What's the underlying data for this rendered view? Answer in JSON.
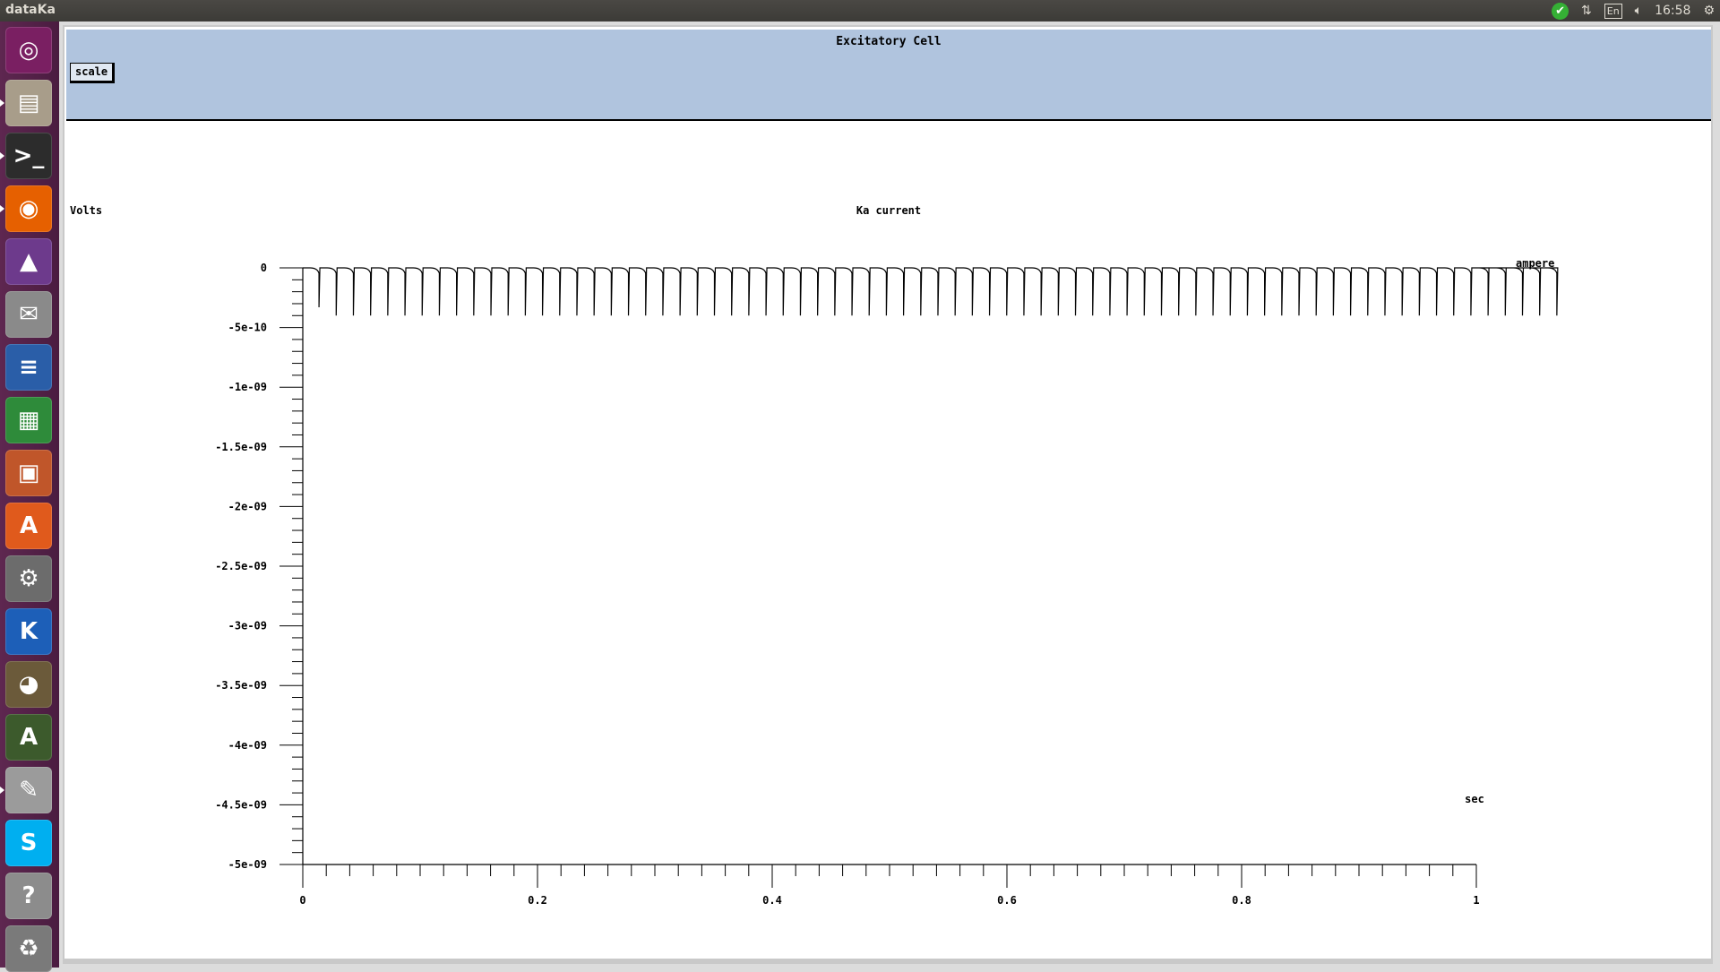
{
  "topbar": {
    "app_title": "dataKa",
    "lang": "En",
    "clock": "16:58"
  },
  "launcher": {
    "items": [
      {
        "name": "ubuntu-dash",
        "glyph": "◎",
        "color": "#7a1f62"
      },
      {
        "name": "files",
        "glyph": "▤",
        "color": "#a89d8a"
      },
      {
        "name": "terminal",
        "glyph": ">_",
        "color": "#2c2c2c"
      },
      {
        "name": "firefox",
        "glyph": "◉",
        "color": "#e66000"
      },
      {
        "name": "matlab",
        "glyph": "▲",
        "color": "#6d3a8c"
      },
      {
        "name": "mail",
        "glyph": "✉",
        "color": "#8a8a8a"
      },
      {
        "name": "writer",
        "glyph": "≡",
        "color": "#2a5ea8"
      },
      {
        "name": "calc",
        "glyph": "▦",
        "color": "#2e8b3a"
      },
      {
        "name": "impress",
        "glyph": "▣",
        "color": "#c0562a"
      },
      {
        "name": "software-center",
        "glyph": "A",
        "color": "#e05a1c"
      },
      {
        "name": "settings",
        "glyph": "⚙",
        "color": "#6c6c6c"
      },
      {
        "name": "kile",
        "glyph": "K",
        "color": "#1d5fb8"
      },
      {
        "name": "gimp",
        "glyph": "◕",
        "color": "#6b5a3a"
      },
      {
        "name": "updater",
        "glyph": "A",
        "color": "#3c5a2c"
      },
      {
        "name": "text-editor",
        "glyph": "✎",
        "color": "#9b9b9b"
      },
      {
        "name": "skype",
        "glyph": "S",
        "color": "#00aff0"
      },
      {
        "name": "help",
        "glyph": "?",
        "color": "#8c8c8c"
      },
      {
        "name": "trash",
        "glyph": "♻",
        "color": "#7a7a7a"
      }
    ]
  },
  "window": {
    "title": "Excitatory Cell",
    "scale_button": "scale"
  },
  "chart_data": {
    "type": "line",
    "title": "Ka current",
    "ylabel": "Volts",
    "ylabel_right": "ampere",
    "xlabel": "sec",
    "xlim": [
      0,
      1
    ],
    "ylim": [
      -5e-09,
      0
    ],
    "x_ticks": [
      "0",
      "0.2",
      "0.4",
      "0.6",
      "0.8",
      "1"
    ],
    "x_tick_values": [
      0,
      0.2,
      0.4,
      0.6,
      0.8,
      1
    ],
    "y_ticks": [
      "0",
      "-5e-10",
      "-1e-09",
      "-1.5e-09",
      "-2e-09",
      "-2.5e-09",
      "-3e-09",
      "-3.5e-09",
      "-4e-09",
      "-4.5e-09",
      "-5e-09"
    ],
    "y_tick_values": [
      0,
      -5e-10,
      -1e-09,
      -1.5e-09,
      -2e-09,
      -2.5e-09,
      -3e-09,
      -3.5e-09,
      -4e-09,
      -4.5e-09,
      -5e-09
    ],
    "grid": false,
    "series": [
      {
        "spike_train": {
          "first_spike_time": 0.0138,
          "first_spike_min": -3.3e-10,
          "spike_period": 0.01465,
          "spike_count": 73,
          "spike_min": -4e-10,
          "baseline": 0
        }
      }
    ]
  }
}
